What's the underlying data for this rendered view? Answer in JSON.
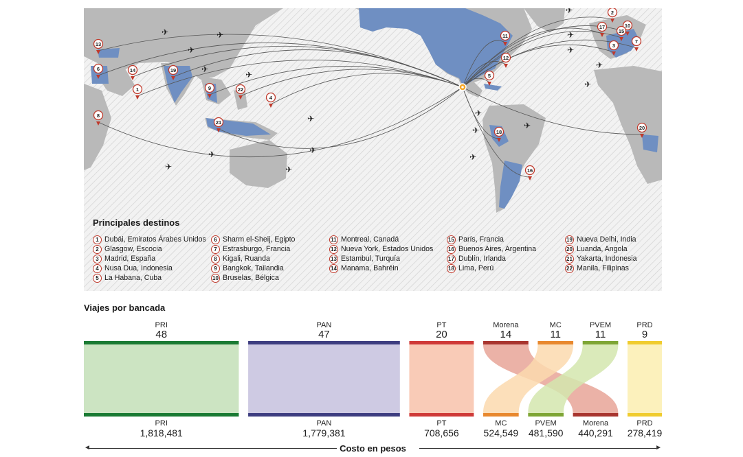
{
  "map": {
    "legend_title": "Principales destinos",
    "destinations": [
      {
        "num": "1",
        "label": "Dubái, Emiratos Árabes Unidos"
      },
      {
        "num": "2",
        "label": "Glasgow, Escocia"
      },
      {
        "num": "3",
        "label": "Madrid, España"
      },
      {
        "num": "4",
        "label": "Nusa Dua, Indonesia"
      },
      {
        "num": "5",
        "label": "La Habana, Cuba"
      },
      {
        "num": "6",
        "label": "Sharm el-Sheij, Egipto"
      },
      {
        "num": "7",
        "label": "Estrasburgo, Francia"
      },
      {
        "num": "8",
        "label": "Kigali, Ruanda"
      },
      {
        "num": "9",
        "label": "Bangkok, Tailandia"
      },
      {
        "num": "10",
        "label": "Bruselas, Bélgica"
      },
      {
        "num": "11",
        "label": "Montreal, Canadá"
      },
      {
        "num": "12",
        "label": "Nueva York, Estados Unidos"
      },
      {
        "num": "13",
        "label": "Estambul, Turquía"
      },
      {
        "num": "14",
        "label": "Manama, Bahréin"
      },
      {
        "num": "15",
        "label": "París, Francia"
      },
      {
        "num": "16",
        "label": "Buenos Aires, Argentina"
      },
      {
        "num": "17",
        "label": "Dublín, Irlanda"
      },
      {
        "num": "18",
        "label": "Lima, Perú"
      },
      {
        "num": "19",
        "label": "Nueva Delhi, India"
      },
      {
        "num": "20",
        "label": "Luanda, Angola"
      },
      {
        "num": "21",
        "label": "Yakarta, Indonesia"
      },
      {
        "num": "22",
        "label": "Manila, Filipinas"
      }
    ]
  },
  "chart_data": {
    "type": "sankey",
    "title": "Viajes por bancada",
    "xlabel": "Costo en pesos",
    "trips_label": "Viajes por bancada",
    "trips": [
      {
        "party": "PRI",
        "value": 48,
        "color": "#1a7a33",
        "fill": "#c3dfb7"
      },
      {
        "party": "PAN",
        "value": 47,
        "color": "#3d3d80",
        "fill": "#c6c1de"
      },
      {
        "party": "PT",
        "value": 20,
        "color": "#cf3a38",
        "fill": "#f8c2aa"
      },
      {
        "party": "Morena",
        "value": 14,
        "color": "#a8352f",
        "fill": "#e8a598"
      },
      {
        "party": "MC",
        "value": 11,
        "color": "#e8882e",
        "fill": "#fbd9ae"
      },
      {
        "party": "PVEM",
        "value": 11,
        "color": "#7ea535",
        "fill": "#d3e6ae"
      },
      {
        "party": "PRD",
        "value": 9,
        "color": "#f0cc2e",
        "fill": "#fbefb0"
      }
    ],
    "costs": [
      {
        "party": "PRI",
        "value": 1818481,
        "label": "1,818,481",
        "color": "#1a7a33"
      },
      {
        "party": "PAN",
        "value": 1779381,
        "label": "1,779,381",
        "color": "#3d3d80"
      },
      {
        "party": "PT",
        "value": 708656,
        "label": "708,656",
        "color": "#cf3a38"
      },
      {
        "party": "MC",
        "value": 524549,
        "label": "524,549",
        "color": "#e8882e"
      },
      {
        "party": "PVEM",
        "value": 481590,
        "label": "481,590",
        "color": "#7ea535"
      },
      {
        "party": "Morena",
        "value": 440291,
        "label": "440,291",
        "color": "#a8352f"
      },
      {
        "party": "PRD",
        "value": 278419,
        "label": "278,419",
        "color": "#f0cc2e"
      }
    ]
  }
}
